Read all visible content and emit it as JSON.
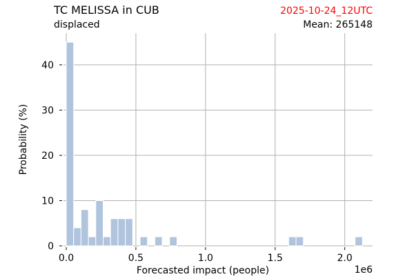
{
  "chart_data": {
    "type": "bar",
    "title": "TC MELISSA in CUB",
    "subtitle": "displaced",
    "date_label": "2025-10-24_12UTC",
    "mean_label": "Mean: 265148",
    "xlabel": "Forecasted impact (people)",
    "ylabel": "Probability (%)",
    "x_offset_label": "1e6",
    "xlim": [
      -0.02,
      2.2
    ],
    "ylim": [
      0,
      47
    ],
    "x_ticks": [
      0.0,
      0.5,
      1.0,
      1.5,
      2.0
    ],
    "x_tick_labels": [
      "0.0",
      "0.5",
      "1.0",
      "1.5",
      "2.0"
    ],
    "y_ticks": [
      0,
      10,
      20,
      30,
      40
    ],
    "y_tick_labels": [
      "0",
      "10",
      "20",
      "30",
      "40"
    ],
    "grid": true,
    "bin_width": 0.053,
    "bars": [
      {
        "x": 0.0,
        "value": 45
      },
      {
        "x": 0.053,
        "value": 4
      },
      {
        "x": 0.106,
        "value": 8
      },
      {
        "x": 0.159,
        "value": 2
      },
      {
        "x": 0.212,
        "value": 10
      },
      {
        "x": 0.265,
        "value": 2
      },
      {
        "x": 0.318,
        "value": 6
      },
      {
        "x": 0.371,
        "value": 6
      },
      {
        "x": 0.424,
        "value": 6
      },
      {
        "x": 0.53,
        "value": 2
      },
      {
        "x": 0.636,
        "value": 2
      },
      {
        "x": 0.742,
        "value": 2
      },
      {
        "x": 1.597,
        "value": 2
      },
      {
        "x": 1.65,
        "value": 2
      },
      {
        "x": 2.074,
        "value": 2
      }
    ],
    "colors": {
      "bar": "#b0c4de",
      "grid": "#b0b0b0",
      "date": "#ff0000"
    }
  }
}
